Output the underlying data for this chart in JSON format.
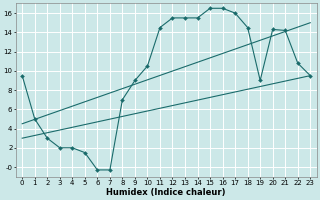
{
  "xlabel": "Humidex (Indice chaleur)",
  "bg_color": "#cce8e8",
  "grid_color": "#ffffff",
  "line_color": "#1a6b6b",
  "ylim": [
    -1,
    17
  ],
  "xlim": [
    -0.5,
    23.5
  ],
  "yticks": [
    0,
    2,
    4,
    6,
    8,
    10,
    12,
    14,
    16
  ],
  "ytick_labels": [
    "-0",
    "2",
    "4",
    "6",
    "8",
    "10",
    "12",
    "14",
    "16"
  ],
  "xticks": [
    0,
    1,
    2,
    3,
    4,
    5,
    6,
    7,
    8,
    9,
    10,
    11,
    12,
    13,
    14,
    15,
    16,
    17,
    18,
    19,
    20,
    21,
    22,
    23
  ],
  "data_line": {
    "x": [
      0,
      1,
      2,
      3,
      4,
      5,
      6,
      7,
      8,
      9,
      10,
      11,
      12,
      13,
      14,
      15,
      16,
      17,
      18,
      19,
      20,
      21,
      22,
      23
    ],
    "y": [
      9.5,
      5,
      3,
      2,
      2,
      1.5,
      -0.3,
      -0.3,
      7,
      9,
      10.5,
      14.5,
      15.5,
      15.5,
      15.5,
      16.5,
      16.5,
      16,
      14.5,
      9,
      14.3,
      14.2,
      10.8,
      9.5
    ]
  },
  "regression_line1": {
    "x": [
      0,
      23
    ],
    "y": [
      3.0,
      9.5
    ]
  },
  "regression_line2": {
    "x": [
      0,
      23
    ],
    "y": [
      4.5,
      15.0
    ]
  },
  "tick_fontsize": 5.0,
  "xlabel_fontsize": 6.0
}
